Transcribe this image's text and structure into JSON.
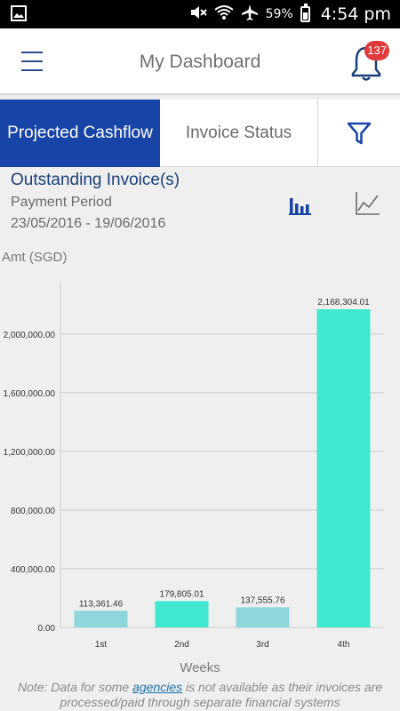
{
  "status_bar": {
    "battery_percent": "59%",
    "time": "4:54 pm",
    "icons": [
      "image-icon",
      "mute-icon",
      "wifi-icon",
      "airplane-icon",
      "battery-icon"
    ]
  },
  "app_bar": {
    "title": "My Dashboard",
    "notification_count": "137"
  },
  "tabs": {
    "active_label": "Projected Cashflow",
    "inactive_label": "Invoice Status"
  },
  "info": {
    "title": "Outstanding Invoice(s)",
    "subtitle": "Payment Period",
    "date_range": "23/05/2016 - 19/06/2016"
  },
  "chart_data": {
    "type": "bar",
    "categories": [
      "1st",
      "2nd",
      "3rd",
      "4th"
    ],
    "values": [
      113361.46,
      179805.01,
      137555.76,
      2168304.01
    ],
    "data_labels": [
      "113,361.46",
      "179,805.01",
      "137,555.76",
      "2,168,304.01"
    ],
    "bar_colors": [
      "#8fd6dc",
      "#40e8cf",
      "#8fd6dc",
      "#40e8cf"
    ],
    "ylabel": "Amt (SGD)",
    "xlabel": "Weeks",
    "yticks": [
      0,
      400000,
      800000,
      1200000,
      1600000,
      2000000
    ],
    "ytick_labels": [
      "0.00",
      "400,000.00",
      "800,000.00",
      "1,200,000.00",
      "1,600,000.00",
      "2,000,000.00"
    ],
    "ylim": [
      0,
      2350000
    ],
    "grid": true,
    "colors": {
      "axis": "#cccccc",
      "text": "#333333"
    }
  },
  "note": {
    "before": "Note: Data for some ",
    "link": "agencies",
    "after": " is not available as their invoices are processed/paid through separate financial systems"
  },
  "colors": {
    "primary": "#1744a6",
    "title_blue": "#1b3f78",
    "badge_red": "#e03a3a"
  }
}
